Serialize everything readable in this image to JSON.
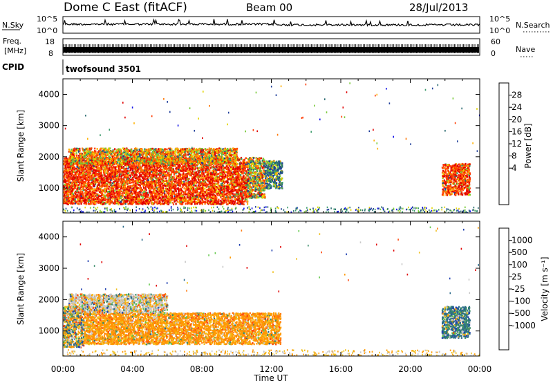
{
  "header": {
    "station": "Dome C East (fitACF)",
    "beam": "Beam 00",
    "date": "28/Jul/2013"
  },
  "noise_panel": {
    "left_label": "N.Sky",
    "left_ticks": [
      "10^5",
      "10^0"
    ],
    "right_label": "N.Search",
    "right_ticks": [
      "10^5",
      "10^0"
    ]
  },
  "freq_panel": {
    "left_label_1": "Freq.",
    "left_label_2": "[MHz]",
    "left_ticks": [
      "18",
      "8"
    ],
    "right_label": "Nave",
    "right_ticks": [
      "60",
      "0"
    ]
  },
  "cpid_panel": {
    "label": "CPID",
    "value": "twofsound 3501"
  },
  "axes": {
    "ylabel": "Slant Range [km]",
    "yticks": [
      "4000",
      "3000",
      "2000",
      "1000"
    ],
    "xticks": [
      "00:00",
      "04:00",
      "08:00",
      "12:00",
      "16:00",
      "20:00",
      "00:00"
    ],
    "xlabel": "Time UT"
  },
  "colorbars": {
    "power": {
      "label": "Power [dB]",
      "ticks": [
        "28",
        "24",
        "20",
        "16",
        "12",
        "8",
        "4"
      ],
      "colors": [
        "#e00000",
        "#ff3a00",
        "#ff7400",
        "#ffb000",
        "#e2d400",
        "#76c936",
        "#3a9a6a",
        "#2a6a70",
        "#1f3e9a",
        "#1010e8"
      ]
    },
    "velocity": {
      "label": "Velocity [m s⁻¹]",
      "ticks": [
        "1000",
        "500",
        "100",
        "25",
        "-25",
        "-100",
        "-500",
        "-1000"
      ],
      "colors": [
        "#2040b0",
        "#2a6a8a",
        "#3a8c6a",
        "#62c84a",
        "#c8c8c8",
        "#f0c020",
        "#ff9a00",
        "#ff7a10",
        "#ff4a10",
        "#e00000"
      ]
    }
  },
  "chart_data": {
    "type": "heatmap",
    "x_unit": "hours UT",
    "xlim": [
      0,
      24
    ],
    "ylim": [
      200,
      4500
    ],
    "power_regions": [
      {
        "t0": 0.0,
        "t1": 10.6,
        "r0": 500,
        "r1": 2000,
        "level": "high"
      },
      {
        "t0": 0.3,
        "t1": 10.0,
        "r0": 1800,
        "r1": 2300,
        "level": "medium"
      },
      {
        "t0": 10.6,
        "t1": 11.6,
        "r0": 700,
        "r1": 2000,
        "level": "mixed"
      },
      {
        "t0": 11.6,
        "t1": 12.6,
        "r0": 1000,
        "r1": 1900,
        "level": "low"
      },
      {
        "t0": 21.8,
        "t1": 23.4,
        "r0": 800,
        "r1": 1800,
        "level": "high"
      }
    ],
    "velocity_regions": [
      {
        "t0": 0.0,
        "t1": 1.2,
        "r0": 500,
        "r1": 1800,
        "class": "-100 to 25"
      },
      {
        "t0": 1.2,
        "t1": 12.5,
        "r0": 600,
        "r1": 1600,
        "class": "-100"
      },
      {
        "t0": 0.3,
        "t1": 6.0,
        "r0": 1600,
        "r1": 2200,
        "class": "-25 to 25"
      },
      {
        "t0": 21.8,
        "t1": 23.4,
        "r0": 800,
        "r1": 1800,
        "class": "100 to 500"
      }
    ]
  }
}
